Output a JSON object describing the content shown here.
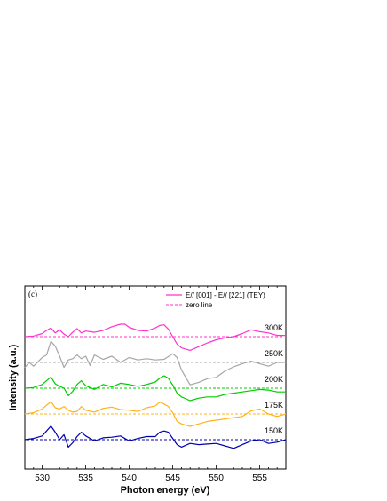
{
  "chart_data": {
    "type": "line",
    "panel_label": "(c)",
    "xlabel": "Photon energy (eV)",
    "ylabel": "Intensity (a.u.)",
    "xlim": [
      528,
      558
    ],
    "x_ticks": [
      530,
      535,
      540,
      545,
      550,
      555
    ],
    "y_ticks_labeled": false,
    "grid": false,
    "legend_position": "top-right",
    "legend": [
      {
        "label": "E// [001] - E// [221] (TEY)",
        "style": "solid",
        "color": "#ff33cc"
      },
      {
        "label": "zero line",
        "style": "dashed",
        "color": "#ff33cc"
      }
    ],
    "series": [
      {
        "name": "300K",
        "color": "#ff33cc",
        "baseline_color": "#ff33cc",
        "offset": 4,
        "x": [
          528,
          529,
          530,
          530.5,
          531,
          531.5,
          532,
          532.5,
          533,
          533.5,
          534,
          534.5,
          535,
          536,
          537,
          538,
          539,
          539.5,
          540,
          541,
          542,
          543,
          543.5,
          544,
          544.5,
          545,
          545.5,
          546,
          547,
          548,
          549,
          550,
          551,
          552,
          553,
          554,
          555,
          556,
          557,
          558
        ],
        "y": [
          0.0,
          0.01,
          0.05,
          0.1,
          0.14,
          0.06,
          0.11,
          0.04,
          0.0,
          0.07,
          0.13,
          0.06,
          0.09,
          0.07,
          0.1,
          0.16,
          0.2,
          0.2,
          0.15,
          0.1,
          0.09,
          0.14,
          0.18,
          0.19,
          0.12,
          0.0,
          -0.12,
          -0.18,
          -0.22,
          -0.16,
          -0.1,
          -0.05,
          -0.02,
          0.0,
          0.05,
          0.11,
          0.08,
          0.06,
          0.02,
          0.02
        ]
      },
      {
        "name": "250K",
        "color": "#a6a6a6",
        "baseline_color": "#a6a6a6",
        "offset": 3,
        "x": [
          528,
          528.5,
          529,
          530,
          530.5,
          531,
          531.5,
          532,
          532.5,
          533,
          533.5,
          534,
          534.5,
          535,
          535.5,
          536,
          537,
          538,
          539,
          540,
          541,
          542,
          543,
          544,
          545,
          545.5,
          546,
          547,
          548,
          549,
          550,
          551,
          552,
          553,
          554,
          555,
          556,
          557,
          558
        ],
        "y": [
          -0.08,
          0.0,
          -0.06,
          0.08,
          0.12,
          0.34,
          0.26,
          0.1,
          -0.08,
          0.04,
          0.06,
          0.12,
          0.06,
          0.1,
          -0.05,
          0.12,
          0.05,
          0.1,
          0.0,
          0.08,
          0.04,
          0.06,
          0.04,
          0.05,
          0.14,
          0.08,
          -0.12,
          -0.36,
          -0.32,
          -0.26,
          -0.24,
          -0.14,
          -0.07,
          -0.02,
          0.02,
          -0.02,
          -0.06,
          0.0,
          0.0
        ]
      },
      {
        "name": "200K",
        "color": "#00cc00",
        "baseline_color": "#00cc00",
        "offset": 2,
        "x": [
          528,
          529,
          530,
          530.5,
          531,
          531.5,
          532,
          532.5,
          533,
          533.5,
          534,
          534.5,
          535,
          536,
          537,
          538,
          539,
          540,
          541,
          542,
          543,
          543.5,
          544,
          544.5,
          545,
          545.5,
          546,
          547,
          548,
          549,
          550,
          551,
          552,
          553,
          554,
          555,
          556,
          557,
          558
        ],
        "y": [
          0.0,
          0.01,
          0.06,
          0.12,
          0.18,
          0.07,
          0.03,
          0.0,
          -0.12,
          -0.05,
          0.06,
          0.12,
          0.04,
          -0.02,
          0.06,
          0.02,
          0.08,
          0.06,
          0.03,
          0.06,
          0.1,
          0.16,
          0.2,
          0.16,
          0.05,
          -0.08,
          -0.14,
          -0.2,
          -0.16,
          -0.14,
          -0.14,
          -0.1,
          -0.08,
          -0.06,
          -0.04,
          -0.02,
          -0.03,
          -0.06,
          -0.06
        ]
      },
      {
        "name": "175K",
        "color": "#ffb31a",
        "baseline_color": "#ffb31a",
        "offset": 1,
        "x": [
          528,
          529,
          530,
          530.5,
          531,
          531.5,
          532,
          532.5,
          533,
          533.5,
          534,
          534.5,
          535,
          536,
          537,
          538,
          539,
          540,
          541,
          542,
          543,
          543.5,
          544,
          544.5,
          545,
          545.5,
          546,
          547,
          548,
          549,
          550,
          551,
          552,
          553,
          554,
          555,
          556,
          557,
          558
        ],
        "y": [
          0.0,
          0.02,
          0.08,
          0.14,
          0.2,
          0.1,
          0.08,
          0.12,
          0.06,
          0.03,
          0.04,
          0.12,
          0.06,
          0.03,
          0.09,
          0.11,
          0.07,
          0.06,
          0.04,
          0.1,
          0.13,
          0.19,
          0.16,
          0.12,
          0.02,
          -0.12,
          -0.16,
          -0.2,
          -0.16,
          -0.12,
          -0.1,
          -0.08,
          -0.06,
          -0.04,
          0.05,
          0.08,
          0.0,
          -0.04,
          0.0
        ]
      },
      {
        "name": "150K",
        "color": "#0000aa",
        "baseline_color": "#0000aa",
        "offset": 0,
        "x": [
          528,
          529,
          530,
          530.5,
          531,
          531.5,
          532,
          532.5,
          533,
          533.5,
          534,
          534.5,
          535,
          536,
          537,
          538,
          539,
          540,
          541,
          542,
          543,
          543.5,
          544,
          544.5,
          545,
          545.5,
          546,
          547,
          548,
          549,
          550,
          551,
          552,
          553,
          554,
          555,
          556,
          557,
          558
        ],
        "y": [
          0.0,
          0.02,
          0.06,
          0.14,
          0.22,
          0.12,
          0.0,
          0.08,
          -0.12,
          -0.05,
          0.05,
          0.12,
          0.06,
          -0.02,
          0.03,
          0.04,
          0.06,
          -0.02,
          0.02,
          0.05,
          0.05,
          0.12,
          0.14,
          0.12,
          0.02,
          -0.08,
          -0.12,
          -0.06,
          -0.08,
          -0.07,
          -0.06,
          -0.1,
          -0.14,
          -0.08,
          -0.02,
          0.0,
          -0.06,
          -0.04,
          0.0
        ]
      }
    ]
  }
}
